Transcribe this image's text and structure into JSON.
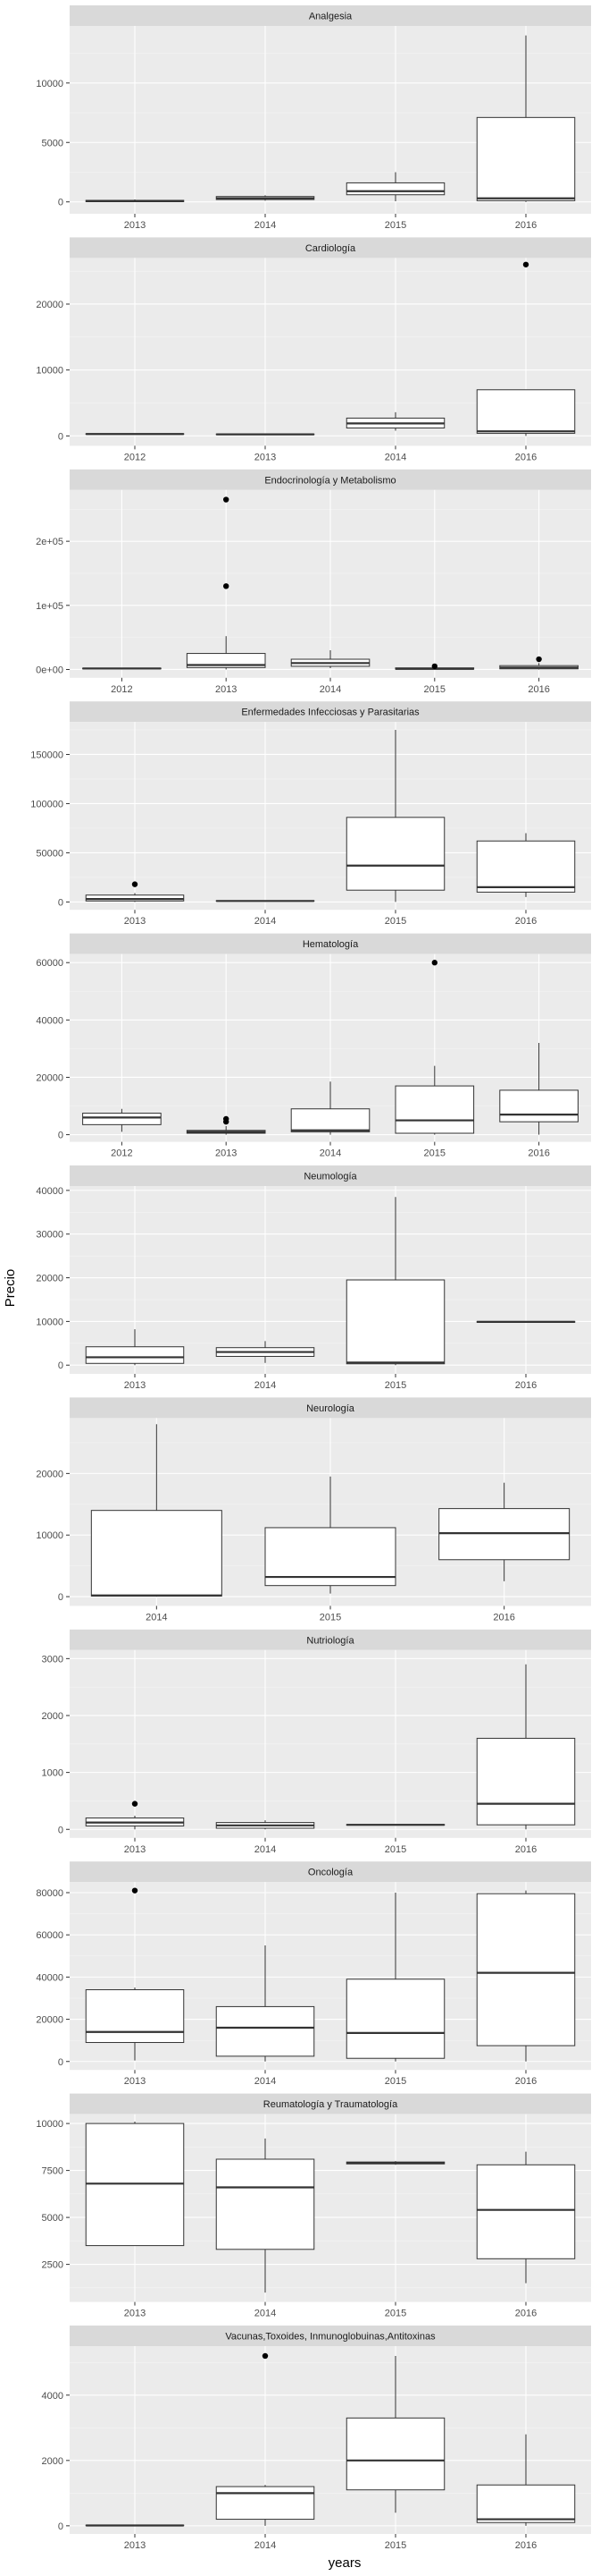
{
  "chart_data": {
    "type": "boxplot",
    "xlabel": "years",
    "ylabel": "Precio",
    "facet_layout": "one column, free scales",
    "grid": true,
    "panels": [
      {
        "title": "Analgesia",
        "ylim": [
          -1000,
          14800
        ],
        "yticks": [
          0,
          5000,
          10000
        ],
        "ytick_labels": [
          "0",
          "5000",
          "10000"
        ],
        "boxes": [
          {
            "x": "2013",
            "min": 0,
            "q1": 20,
            "median": 60,
            "q3": 130,
            "max": 200,
            "outliers": []
          },
          {
            "x": "2014",
            "min": 100,
            "q1": 200,
            "median": 300,
            "q3": 450,
            "max": 550,
            "outliers": []
          },
          {
            "x": "2015",
            "min": 50,
            "q1": 600,
            "median": 900,
            "q3": 1600,
            "max": 2500,
            "outliers": []
          },
          {
            "x": "2016",
            "min": 0,
            "q1": 100,
            "median": 300,
            "q3": 7100,
            "max": 14000,
            "outliers": []
          }
        ]
      },
      {
        "title": "Cardiología",
        "ylim": [
          -1500,
          27000
        ],
        "yticks": [
          0,
          10000,
          20000
        ],
        "ytick_labels": [
          "0",
          "10000",
          "20000"
        ],
        "boxes": [
          {
            "x": "2012",
            "min": 200,
            "q1": 250,
            "median": 280,
            "q3": 330,
            "max": 380,
            "outliers": []
          },
          {
            "x": "2013",
            "min": 150,
            "q1": 200,
            "median": 230,
            "q3": 280,
            "max": 320,
            "outliers": []
          },
          {
            "x": "2014",
            "min": 800,
            "q1": 1200,
            "median": 1900,
            "q3": 2700,
            "max": 3600,
            "outliers": []
          },
          {
            "x": "2016",
            "min": 0,
            "q1": 400,
            "median": 700,
            "q3": 7000,
            "max": 7000,
            "outliers": [
              26000
            ]
          }
        ]
      },
      {
        "title": "Endocrinología y Metabolismo",
        "ylim": [
          -13000,
          280000
        ],
        "yticks": [
          0,
          100000,
          200000
        ],
        "ytick_labels": [
          "0e+00",
          "1e+05",
          "2e+05"
        ],
        "boxes": [
          {
            "x": "2012",
            "min": 500,
            "q1": 1000,
            "median": 1500,
            "q3": 2000,
            "max": 2500,
            "outliers": []
          },
          {
            "x": "2013",
            "min": 0,
            "q1": 3000,
            "median": 7000,
            "q3": 25000,
            "max": 52000,
            "outliers": [
              130000,
              265000
            ]
          },
          {
            "x": "2014",
            "min": 2000,
            "q1": 5000,
            "median": 10000,
            "q3": 16000,
            "max": 30000,
            "outliers": []
          },
          {
            "x": "2015",
            "min": 0,
            "q1": 500,
            "median": 1000,
            "q3": 2500,
            "max": 4000,
            "outliers": [
              5000
            ]
          },
          {
            "x": "2016",
            "min": 0,
            "q1": 1000,
            "median": 3000,
            "q3": 6000,
            "max": 10000,
            "outliers": [
              16000
            ]
          }
        ]
      },
      {
        "title": "Enfermedades Infecciosas y Parasitarias",
        "ylim": [
          -8000,
          183000
        ],
        "yticks": [
          0,
          50000,
          100000,
          150000
        ],
        "ytick_labels": [
          "0",
          "50000",
          "100000",
          "150000"
        ],
        "boxes": [
          {
            "x": "2013",
            "min": 0,
            "q1": 1000,
            "median": 3000,
            "q3": 7000,
            "max": 9000,
            "outliers": [
              18000
            ]
          },
          {
            "x": "2014",
            "min": 500,
            "q1": 800,
            "median": 1000,
            "q3": 1300,
            "max": 1500,
            "outliers": []
          },
          {
            "x": "2015",
            "min": 0,
            "q1": 12000,
            "median": 37000,
            "q3": 86000,
            "max": 175000,
            "outliers": []
          },
          {
            "x": "2016",
            "min": 5000,
            "q1": 10000,
            "median": 15000,
            "q3": 62000,
            "max": 70000,
            "outliers": []
          }
        ]
      },
      {
        "title": "Hematología",
        "ylim": [
          -2500,
          63000
        ],
        "yticks": [
          0,
          20000,
          40000,
          60000
        ],
        "ytick_labels": [
          "0",
          "20000",
          "40000",
          "60000"
        ],
        "boxes": [
          {
            "x": "2012",
            "min": 1000,
            "q1": 3500,
            "median": 6000,
            "q3": 7500,
            "max": 9000,
            "outliers": []
          },
          {
            "x": "2013",
            "min": 0,
            "q1": 500,
            "median": 1000,
            "q3": 1500,
            "max": 3000,
            "outliers": [
              4500,
              5500
            ]
          },
          {
            "x": "2014",
            "min": 0,
            "q1": 1000,
            "median": 1500,
            "q3": 9000,
            "max": 18500,
            "outliers": []
          },
          {
            "x": "2015",
            "min": 0,
            "q1": 500,
            "median": 5000,
            "q3": 17000,
            "max": 24000,
            "outliers": [
              60000
            ]
          },
          {
            "x": "2016",
            "min": 0,
            "q1": 4500,
            "median": 7000,
            "q3": 15500,
            "max": 32000,
            "outliers": []
          }
        ]
      },
      {
        "title": "Neumología",
        "ylim": [
          -2000,
          41000
        ],
        "yticks": [
          0,
          10000,
          20000,
          30000,
          40000
        ],
        "ytick_labels": [
          "0",
          "10000",
          "20000",
          "30000",
          "40000"
        ],
        "boxes": [
          {
            "x": "2013",
            "min": 0,
            "q1": 400,
            "median": 1800,
            "q3": 4200,
            "max": 8200,
            "outliers": []
          },
          {
            "x": "2014",
            "min": 500,
            "q1": 2000,
            "median": 3000,
            "q3": 4000,
            "max": 5500,
            "outliers": []
          },
          {
            "x": "2015",
            "min": 0,
            "q1": 300,
            "median": 600,
            "q3": 19500,
            "max": 38500,
            "outliers": []
          },
          {
            "x": "2016",
            "min": 9800,
            "q1": 9800,
            "median": 9900,
            "q3": 10000,
            "max": 10000,
            "outliers": []
          }
        ]
      },
      {
        "title": "Neurología",
        "ylim": [
          -1500,
          29000
        ],
        "yticks": [
          0,
          10000,
          20000
        ],
        "ytick_labels": [
          "0",
          "10000",
          "20000"
        ],
        "boxes": [
          {
            "x": "2014",
            "min": 0,
            "q1": 100,
            "median": 200,
            "q3": 14000,
            "max": 28000,
            "outliers": []
          },
          {
            "x": "2015",
            "min": 500,
            "q1": 1800,
            "median": 3200,
            "q3": 11200,
            "max": 19500,
            "outliers": []
          },
          {
            "x": "2016",
            "min": 2500,
            "q1": 6000,
            "median": 10300,
            "q3": 14300,
            "max": 18500,
            "outliers": []
          }
        ]
      },
      {
        "title": "Nutriología",
        "ylim": [
          -150,
          3150
        ],
        "yticks": [
          0,
          1000,
          2000,
          3000
        ],
        "ytick_labels": [
          "0",
          "1000",
          "2000",
          "3000"
        ],
        "boxes": [
          {
            "x": "2013",
            "min": 0,
            "q1": 60,
            "median": 120,
            "q3": 200,
            "max": 240,
            "outliers": [
              450
            ]
          },
          {
            "x": "2014",
            "min": 0,
            "q1": 20,
            "median": 70,
            "q3": 120,
            "max": 160,
            "outliers": []
          },
          {
            "x": "2015",
            "min": 70,
            "q1": 75,
            "median": 80,
            "q3": 85,
            "max": 90,
            "outliers": []
          },
          {
            "x": "2016",
            "min": 0,
            "q1": 80,
            "median": 450,
            "q3": 1600,
            "max": 2900,
            "outliers": []
          }
        ]
      },
      {
        "title": "Oncología",
        "ylim": [
          -4000,
          85000
        ],
        "yticks": [
          0,
          20000,
          40000,
          60000,
          80000
        ],
        "ytick_labels": [
          "0",
          "20000",
          "40000",
          "60000",
          "80000"
        ],
        "boxes": [
          {
            "x": "2013",
            "min": 500,
            "q1": 9000,
            "median": 14000,
            "q3": 34000,
            "max": 35000,
            "outliers": [
              81000
            ]
          },
          {
            "x": "2014",
            "min": 0,
            "q1": 2500,
            "median": 16000,
            "q3": 26000,
            "max": 55000,
            "outliers": []
          },
          {
            "x": "2015",
            "min": 0,
            "q1": 1500,
            "median": 13500,
            "q3": 39000,
            "max": 80000,
            "outliers": []
          },
          {
            "x": "2016",
            "min": 0,
            "q1": 7500,
            "median": 42000,
            "q3": 79500,
            "max": 81000,
            "outliers": []
          }
        ]
      },
      {
        "title": "Reumatología y Traumatología",
        "ylim": [
          500,
          10500
        ],
        "yticks": [
          2500,
          5000,
          7500,
          10000
        ],
        "ytick_labels": [
          "2500",
          "5000",
          "7500",
          "10000"
        ],
        "boxes": [
          {
            "x": "2013",
            "min": 3500,
            "q1": 3500,
            "median": 6800,
            "q3": 10000,
            "max": 10100,
            "outliers": []
          },
          {
            "x": "2014",
            "min": 1000,
            "q1": 3300,
            "median": 6600,
            "q3": 8100,
            "max": 9200,
            "outliers": []
          },
          {
            "x": "2015",
            "min": 7800,
            "q1": 7850,
            "median": 7900,
            "q3": 7950,
            "max": 8000,
            "outliers": []
          },
          {
            "x": "2016",
            "min": 1500,
            "q1": 2800,
            "median": 5400,
            "q3": 7800,
            "max": 8500,
            "outliers": []
          }
        ]
      },
      {
        "title": "Vacunas,Toxoides, Inmunoglobuinas,Antitoxinas",
        "ylim": [
          -250,
          5500
        ],
        "yticks": [
          0,
          2000,
          4000
        ],
        "ytick_labels": [
          "0",
          "2000",
          "4000"
        ],
        "boxes": [
          {
            "x": "2013",
            "min": 0,
            "q1": 5,
            "median": 10,
            "q3": 20,
            "max": 30,
            "outliers": []
          },
          {
            "x": "2014",
            "min": 0,
            "q1": 200,
            "median": 1000,
            "q3": 1200,
            "max": 1250,
            "outliers": [
              5200
            ]
          },
          {
            "x": "2015",
            "min": 400,
            "q1": 1100,
            "median": 2000,
            "q3": 3300,
            "max": 5200,
            "outliers": []
          },
          {
            "x": "2016",
            "min": 0,
            "q1": 100,
            "median": 200,
            "q3": 1250,
            "max": 2800,
            "outliers": []
          }
        ]
      }
    ]
  },
  "colors": {
    "panel_background": "#ebebeb",
    "strip_background": "#d9d9d9",
    "grid_major": "#ffffff",
    "box_fill": "#ffffff",
    "box_line": "#333333",
    "outlier": "#000000"
  }
}
